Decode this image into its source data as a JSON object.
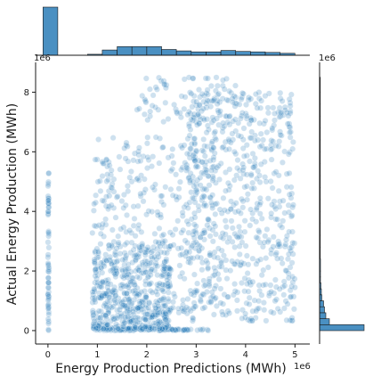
{
  "chart_data": {
    "type": "scatter",
    "variant": "jointplot",
    "xlabel": "Energy Production Predictions (MWh)",
    "ylabel": "Actual Energy Production (MWh)",
    "x_offset_label": "1e6",
    "y_offset_label": "1e6",
    "marginal_y_offset_label": "1e6",
    "x_unit_multiplier": 1000000,
    "y_unit_multiplier": 1000000,
    "xlim": [
      -0.25,
      5.3
    ],
    "ylim": [
      -0.45,
      9.0
    ],
    "x_ticks": [
      0,
      1,
      2,
      3,
      4,
      5
    ],
    "y_ticks": [
      0,
      2,
      4,
      6,
      8
    ],
    "grid": false,
    "legend": "none",
    "point_color": "#1f77b4",
    "point_alpha": 0.22,
    "hist_color": "#4a90c2",
    "point_clusters": [
      {
        "name": "zero-predictions",
        "count": 60,
        "x_range": [
          0.0,
          0.02
        ],
        "y_range": [
          0.0,
          5.3
        ]
      },
      {
        "name": "zero-actuals",
        "count": 90,
        "x_range": [
          0.9,
          3.3
        ],
        "y_range": [
          0.0,
          0.05
        ]
      },
      {
        "name": "low-dense",
        "count": 520,
        "x_range": [
          0.9,
          2.5
        ],
        "y_range": [
          0.05,
          3.0
        ]
      },
      {
        "name": "mid",
        "count": 380,
        "x_range": [
          0.9,
          3.4
        ],
        "y_range": [
          0.5,
          6.5
        ]
      },
      {
        "name": "upper-right",
        "count": 620,
        "x_range": [
          2.8,
          5.0
        ],
        "y_range": [
          0.3,
          8.0
        ]
      },
      {
        "name": "top",
        "count": 80,
        "x_range": [
          1.8,
          3.8
        ],
        "y_range": [
          7.0,
          8.5
        ]
      }
    ],
    "marginal_x_hist": {
      "bin_edges": [
        -0.1,
        0.2,
        0.5,
        0.8,
        1.1,
        1.4,
        1.7,
        2.0,
        2.3,
        2.6,
        2.9,
        3.2,
        3.5,
        3.8,
        4.1,
        4.4,
        4.7,
        5.0
      ],
      "counts": [
        1,
        0,
        0,
        0.02,
        0.11,
        0.18,
        0.18,
        0.18,
        0.12,
        0.09,
        0.07,
        0.07,
        0.1,
        0.08,
        0.07,
        0.06,
        0.04
      ]
    },
    "marginal_y_hist": {
      "bin_edges": [
        0,
        0.2,
        0.4,
        0.6,
        0.8,
        1.0,
        1.2,
        1.4,
        1.6,
        1.8,
        2.0,
        2.4,
        2.8,
        3.2,
        3.6,
        4.0,
        4.4,
        4.8,
        5.2,
        5.6,
        6.0,
        6.4,
        6.8,
        7.2,
        7.6,
        8.0,
        8.5
      ],
      "counts": [
        1,
        0.22,
        0.14,
        0.11,
        0.09,
        0.05,
        0.04,
        0.03,
        0.02,
        0.02,
        0.02,
        0.015,
        0.015,
        0.015,
        0.015,
        0.015,
        0.015,
        0.015,
        0.015,
        0.015,
        0.015,
        0.015,
        0.015,
        0.015,
        0.015,
        0.015
      ]
    }
  }
}
